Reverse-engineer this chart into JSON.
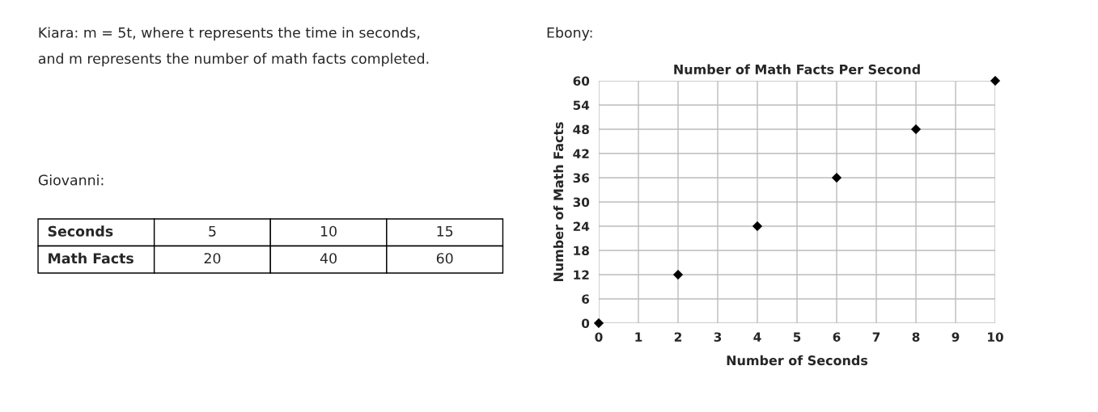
{
  "chart_data": [
    {
      "type": "other",
      "annotations": [
        "Kiara: m = 5t, where t represents the time in seconds,",
        "and m represents the number of math facts completed.",
        "Giovanni:",
        "Seconds",
        "5",
        "10",
        "15",
        "Math Facts",
        "20",
        "40",
        "60"
      ]
    },
    {
      "type": "scatter",
      "title": "Number of Math Facts Per Second",
      "xlabel": "Number of Seconds",
      "ylabel": "Number of Math Facts",
      "annotations": [
        "Ebony:"
      ],
      "x": [
        0,
        2,
        4,
        6,
        8,
        10
      ],
      "values": [
        0,
        12,
        24,
        36,
        48,
        60
      ],
      "color": "#000000",
      "marker": "diamond",
      "xlim": [
        0,
        10
      ],
      "ylim": [
        0,
        60
      ],
      "xticks": [
        0,
        1,
        2,
        3,
        4,
        5,
        6,
        7,
        8,
        9,
        10
      ],
      "yticks": [
        0,
        6,
        12,
        18,
        24,
        30,
        36,
        42,
        48,
        54,
        60
      ],
      "grid": true
    }
  ]
}
